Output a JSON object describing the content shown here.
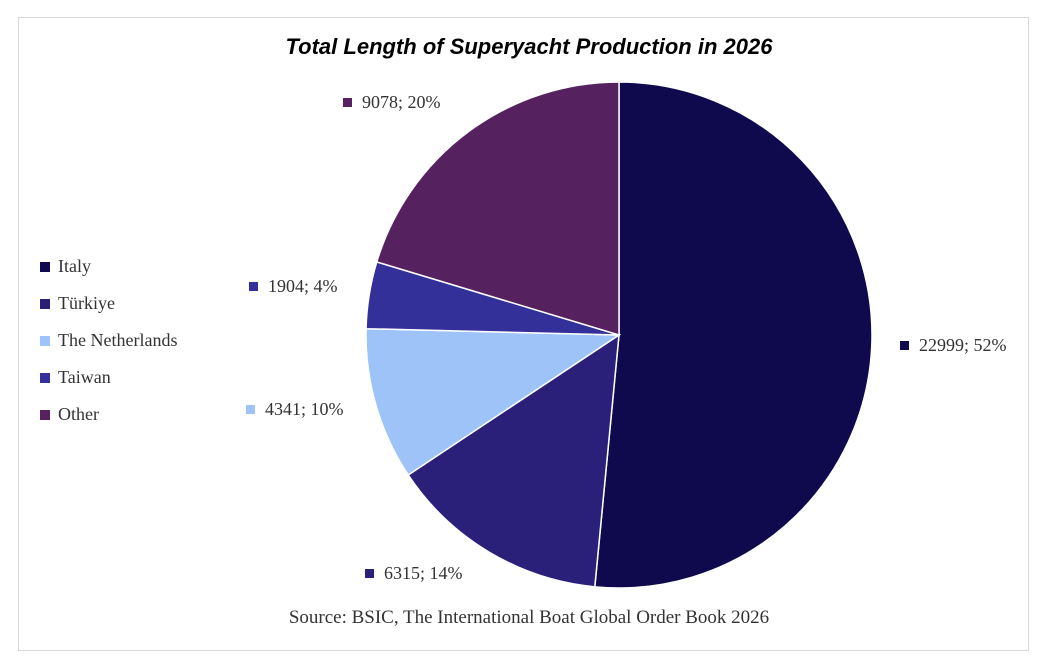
{
  "chart_data": {
    "type": "pie",
    "title": "Total Length of Superyacht Production in 2026",
    "source": "Source: BSIC, The International Boat Global Order Book 2026",
    "legend_position": "left",
    "slices": [
      {
        "name": "Italy",
        "value": 22999,
        "percent": "52%",
        "color": "#0e0a4d",
        "label": "22999; 52%"
      },
      {
        "name": "Türkiye",
        "value": 6315,
        "percent": "14%",
        "color": "#2b2079",
        "label": "6315; 14%"
      },
      {
        "name": "The Netherlands",
        "value": 4341,
        "percent": "10%",
        "color": "#9dc3f8",
        "label": "4341; 10%"
      },
      {
        "name": "Taiwan",
        "value": 1904,
        "percent": "4%",
        "color": "#34309a",
        "label": "1904; 4%"
      },
      {
        "name": "Other",
        "value": 9078,
        "percent": "20%",
        "color": "#55225f",
        "label": "9078; 20%"
      }
    ]
  }
}
